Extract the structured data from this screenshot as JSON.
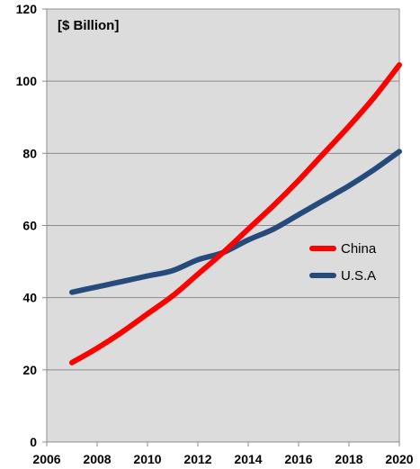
{
  "chart_data": {
    "type": "line",
    "title": "",
    "unit_label": "[$ Billion]",
    "xlabel": "",
    "ylabel": "",
    "xlim": [
      2006,
      2020
    ],
    "ylim": [
      0,
      120
    ],
    "x_ticks": [
      "2006",
      "2008",
      "2010",
      "2012",
      "2014",
      "2016",
      "2018",
      "2020"
    ],
    "y_ticks": [
      "0",
      "20",
      "40",
      "60",
      "80",
      "100",
      "120"
    ],
    "grid": "horizontal",
    "legend_position": "right-center",
    "series": [
      {
        "name": "China",
        "color": "#ff0000",
        "x": [
          2007,
          2008,
          2009,
          2010,
          2011,
          2012,
          2013,
          2014,
          2015,
          2016,
          2017,
          2018,
          2019,
          2020
        ],
        "y": [
          22,
          26,
          30.5,
          35.5,
          40.5,
          46.5,
          52.5,
          59,
          65.5,
          72.5,
          80,
          87.5,
          95.5,
          104.5
        ]
      },
      {
        "name": "U.S.A",
        "color": "#254a7b",
        "x": [
          2007,
          2008,
          2009,
          2010,
          2011,
          2012,
          2013,
          2014,
          2015,
          2016,
          2017,
          2018,
          2019,
          2020
        ],
        "y": [
          41.5,
          43,
          44.5,
          46,
          47.5,
          50.5,
          52.5,
          56,
          59,
          63,
          67,
          71,
          75.5,
          80.5
        ]
      }
    ]
  }
}
